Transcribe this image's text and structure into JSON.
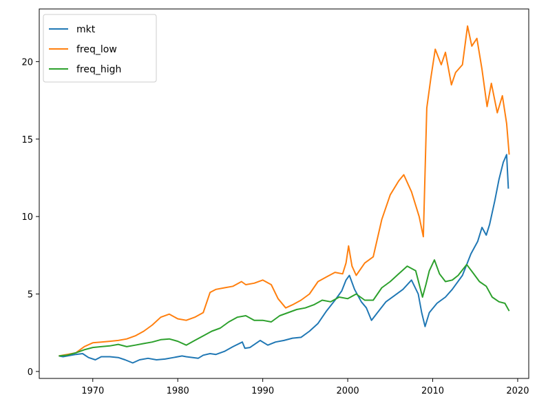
{
  "chart_data": {
    "type": "line",
    "title": "",
    "xlabel": "",
    "ylabel": "",
    "xlim": [
      1963.7,
      2021.3
    ],
    "ylim": [
      -0.45,
      23.4
    ],
    "xticks": [
      1970,
      1980,
      1990,
      2000,
      2010,
      2020
    ],
    "yticks": [
      0,
      5,
      10,
      15,
      20
    ],
    "grid": false,
    "legend_position": "upper left",
    "series": [
      {
        "name": "mkt",
        "color": "#1f77b4",
        "points": [
          [
            1966,
            1.0
          ],
          [
            1966.5,
            0.95
          ],
          [
            1967,
            1.0
          ],
          [
            1968,
            1.1
          ],
          [
            1968.8,
            1.15
          ],
          [
            1969.5,
            0.9
          ],
          [
            1970.3,
            0.75
          ],
          [
            1971,
            0.95
          ],
          [
            1972,
            0.95
          ],
          [
            1973,
            0.9
          ],
          [
            1973.8,
            0.75
          ],
          [
            1974.7,
            0.55
          ],
          [
            1975.5,
            0.75
          ],
          [
            1976.5,
            0.85
          ],
          [
            1977.5,
            0.75
          ],
          [
            1978.5,
            0.8
          ],
          [
            1979.5,
            0.9
          ],
          [
            1980.5,
            1.0
          ],
          [
            1981,
            0.95
          ],
          [
            1982.4,
            0.85
          ],
          [
            1983,
            1.05
          ],
          [
            1983.8,
            1.15
          ],
          [
            1984.5,
            1.1
          ],
          [
            1985.5,
            1.3
          ],
          [
            1986.5,
            1.6
          ],
          [
            1987.6,
            1.9
          ],
          [
            1987.9,
            1.5
          ],
          [
            1988.5,
            1.55
          ],
          [
            1989.7,
            2.0
          ],
          [
            1990.6,
            1.7
          ],
          [
            1991.5,
            1.9
          ],
          [
            1992.5,
            2.0
          ],
          [
            1993.5,
            2.15
          ],
          [
            1994.5,
            2.2
          ],
          [
            1995.5,
            2.6
          ],
          [
            1996.5,
            3.1
          ],
          [
            1997.5,
            3.9
          ],
          [
            1998.5,
            4.6
          ],
          [
            1999.3,
            5.2
          ],
          [
            1999.8,
            5.9
          ],
          [
            2000.2,
            6.2
          ],
          [
            2000.8,
            5.3
          ],
          [
            2001.6,
            4.5
          ],
          [
            2002.2,
            4.1
          ],
          [
            2002.8,
            3.3
          ],
          [
            2003.5,
            3.8
          ],
          [
            2004.5,
            4.5
          ],
          [
            2005.5,
            4.9
          ],
          [
            2006.5,
            5.3
          ],
          [
            2007.5,
            5.9
          ],
          [
            2008.3,
            5.0
          ],
          [
            2008.7,
            3.8
          ],
          [
            2009.1,
            2.9
          ],
          [
            2009.6,
            3.8
          ],
          [
            2010.5,
            4.4
          ],
          [
            2011.5,
            4.8
          ],
          [
            2012.3,
            5.3
          ],
          [
            2013.5,
            6.2
          ],
          [
            2014.5,
            7.6
          ],
          [
            2015.3,
            8.4
          ],
          [
            2015.8,
            9.3
          ],
          [
            2016.3,
            8.8
          ],
          [
            2016.7,
            9.5
          ],
          [
            2017.3,
            11.0
          ],
          [
            2017.8,
            12.4
          ],
          [
            2018.3,
            13.5
          ],
          [
            2018.7,
            14.0
          ],
          [
            2018.9,
            11.8
          ]
        ]
      },
      {
        "name": "freq_low",
        "color": "#ff7f0e",
        "points": [
          [
            1966,
            1.0
          ],
          [
            1967,
            1.1
          ],
          [
            1968,
            1.2
          ],
          [
            1969,
            1.6
          ],
          [
            1970,
            1.85
          ],
          [
            1971,
            1.9
          ],
          [
            1972,
            1.95
          ],
          [
            1973,
            2.0
          ],
          [
            1974,
            2.1
          ],
          [
            1975,
            2.3
          ],
          [
            1976,
            2.6
          ],
          [
            1977,
            3.0
          ],
          [
            1978,
            3.5
          ],
          [
            1979,
            3.7
          ],
          [
            1980,
            3.4
          ],
          [
            1981,
            3.3
          ],
          [
            1982,
            3.5
          ],
          [
            1983,
            3.8
          ],
          [
            1983.8,
            5.1
          ],
          [
            1984.5,
            5.3
          ],
          [
            1985.5,
            5.4
          ],
          [
            1986.5,
            5.5
          ],
          [
            1987.5,
            5.8
          ],
          [
            1988,
            5.6
          ],
          [
            1989,
            5.7
          ],
          [
            1990,
            5.9
          ],
          [
            1991,
            5.6
          ],
          [
            1991.8,
            4.7
          ],
          [
            1992.7,
            4.1
          ],
          [
            1993.5,
            4.3
          ],
          [
            1994.5,
            4.6
          ],
          [
            1995.5,
            5.0
          ],
          [
            1996.5,
            5.8
          ],
          [
            1997.5,
            6.1
          ],
          [
            1998.5,
            6.4
          ],
          [
            1999.4,
            6.3
          ],
          [
            1999.8,
            7.0
          ],
          [
            2000.1,
            8.1
          ],
          [
            2000.5,
            6.8
          ],
          [
            2001,
            6.2
          ],
          [
            2002,
            7.0
          ],
          [
            2003,
            7.4
          ],
          [
            2004,
            9.8
          ],
          [
            2005,
            11.4
          ],
          [
            2006,
            12.3
          ],
          [
            2006.6,
            12.7
          ],
          [
            2007.5,
            11.6
          ],
          [
            2008.4,
            10.0
          ],
          [
            2008.9,
            8.7
          ],
          [
            2009.3,
            17.0
          ],
          [
            2009.8,
            19.0
          ],
          [
            2010.3,
            20.8
          ],
          [
            2011,
            19.8
          ],
          [
            2011.5,
            20.6
          ],
          [
            2012.2,
            18.5
          ],
          [
            2012.7,
            19.3
          ],
          [
            2013.5,
            19.8
          ],
          [
            2014.1,
            22.3
          ],
          [
            2014.6,
            21.0
          ],
          [
            2015.2,
            21.5
          ],
          [
            2015.8,
            19.5
          ],
          [
            2016.4,
            17.1
          ],
          [
            2016.9,
            18.6
          ],
          [
            2017.6,
            16.7
          ],
          [
            2018.2,
            17.8
          ],
          [
            2018.7,
            16.0
          ],
          [
            2019,
            14.0
          ]
        ]
      },
      {
        "name": "freq_high",
        "color": "#2ca02c",
        "points": [
          [
            1966,
            1.0
          ],
          [
            1967,
            1.05
          ],
          [
            1968,
            1.2
          ],
          [
            1969,
            1.4
          ],
          [
            1970,
            1.55
          ],
          [
            1971,
            1.6
          ],
          [
            1972,
            1.65
          ],
          [
            1973,
            1.75
          ],
          [
            1974,
            1.6
          ],
          [
            1975,
            1.7
          ],
          [
            1976,
            1.8
          ],
          [
            1977,
            1.9
          ],
          [
            1978,
            2.05
          ],
          [
            1979,
            2.1
          ],
          [
            1980,
            1.95
          ],
          [
            1981,
            1.7
          ],
          [
            1982,
            2.0
          ],
          [
            1983,
            2.3
          ],
          [
            1984,
            2.6
          ],
          [
            1985,
            2.8
          ],
          [
            1986,
            3.2
          ],
          [
            1987,
            3.5
          ],
          [
            1988,
            3.6
          ],
          [
            1989,
            3.3
          ],
          [
            1990,
            3.3
          ],
          [
            1991,
            3.2
          ],
          [
            1992,
            3.6
          ],
          [
            1993,
            3.8
          ],
          [
            1994,
            4.0
          ],
          [
            1995,
            4.1
          ],
          [
            1996,
            4.3
          ],
          [
            1997,
            4.6
          ],
          [
            1998,
            4.5
          ],
          [
            1999,
            4.8
          ],
          [
            2000,
            4.7
          ],
          [
            2001,
            5.0
          ],
          [
            2002,
            4.6
          ],
          [
            2003,
            4.6
          ],
          [
            2004,
            5.4
          ],
          [
            2005,
            5.8
          ],
          [
            2006,
            6.3
          ],
          [
            2007,
            6.8
          ],
          [
            2008,
            6.5
          ],
          [
            2008.8,
            4.8
          ],
          [
            2009.2,
            5.6
          ],
          [
            2009.6,
            6.5
          ],
          [
            2010.2,
            7.2
          ],
          [
            2010.8,
            6.3
          ],
          [
            2011.5,
            5.8
          ],
          [
            2012.3,
            5.9
          ],
          [
            2013,
            6.2
          ],
          [
            2014,
            6.9
          ],
          [
            2014.7,
            6.4
          ],
          [
            2015.5,
            5.8
          ],
          [
            2016.3,
            5.5
          ],
          [
            2017,
            4.8
          ],
          [
            2017.8,
            4.5
          ],
          [
            2018.5,
            4.4
          ],
          [
            2019,
            3.9
          ]
        ]
      }
    ]
  }
}
